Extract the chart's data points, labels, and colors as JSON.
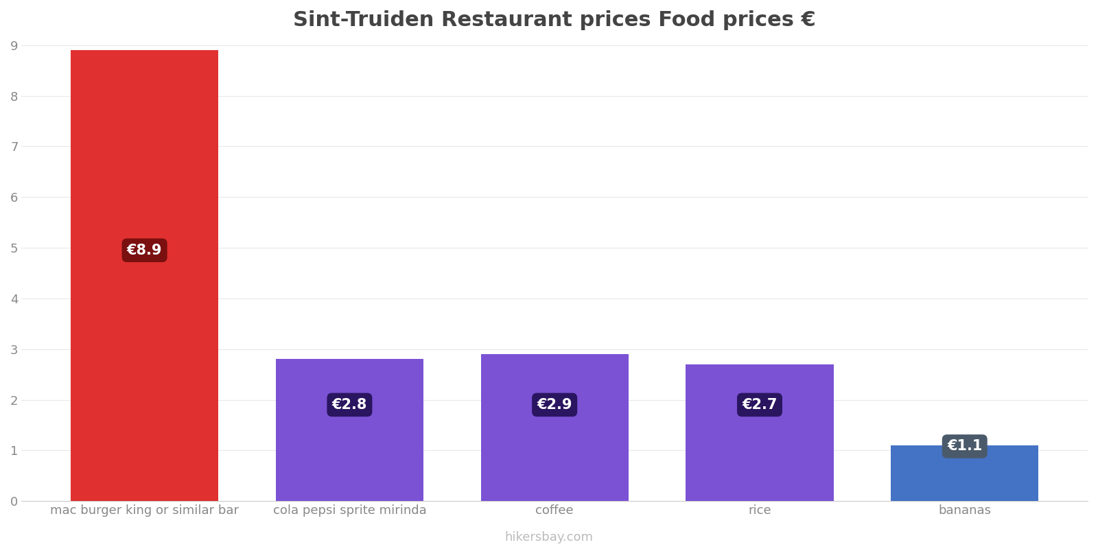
{
  "title": "Sint-Truiden Restaurant prices Food prices €",
  "categories": [
    "mac burger king or similar bar",
    "cola pepsi sprite mirinda",
    "coffee",
    "rice",
    "bananas"
  ],
  "values": [
    8.9,
    2.8,
    2.9,
    2.7,
    1.1
  ],
  "bar_colors": [
    "#e03030",
    "#7b52d4",
    "#7b52d4",
    "#7b52d4",
    "#4472c4"
  ],
  "label_bg_colors": [
    "#7a1010",
    "#2a1560",
    "#2a1560",
    "#2a1560",
    "#4a5a6a"
  ],
  "labels": [
    "€8.9",
    "€2.8",
    "€2.9",
    "€2.7",
    "€1.1"
  ],
  "label_y_positions": [
    4.95,
    1.9,
    1.9,
    1.9,
    1.08
  ],
  "ylim": [
    0,
    9
  ],
  "yticks": [
    0,
    1,
    2,
    3,
    4,
    5,
    6,
    7,
    8,
    9
  ],
  "background_color": "#ffffff",
  "grid_color": "#e8e8e8",
  "title_fontsize": 22,
  "tick_fontsize": 13,
  "bar_width": 0.72,
  "watermark": "hikersbay.com",
  "watermark_color": "#bbbbbb"
}
